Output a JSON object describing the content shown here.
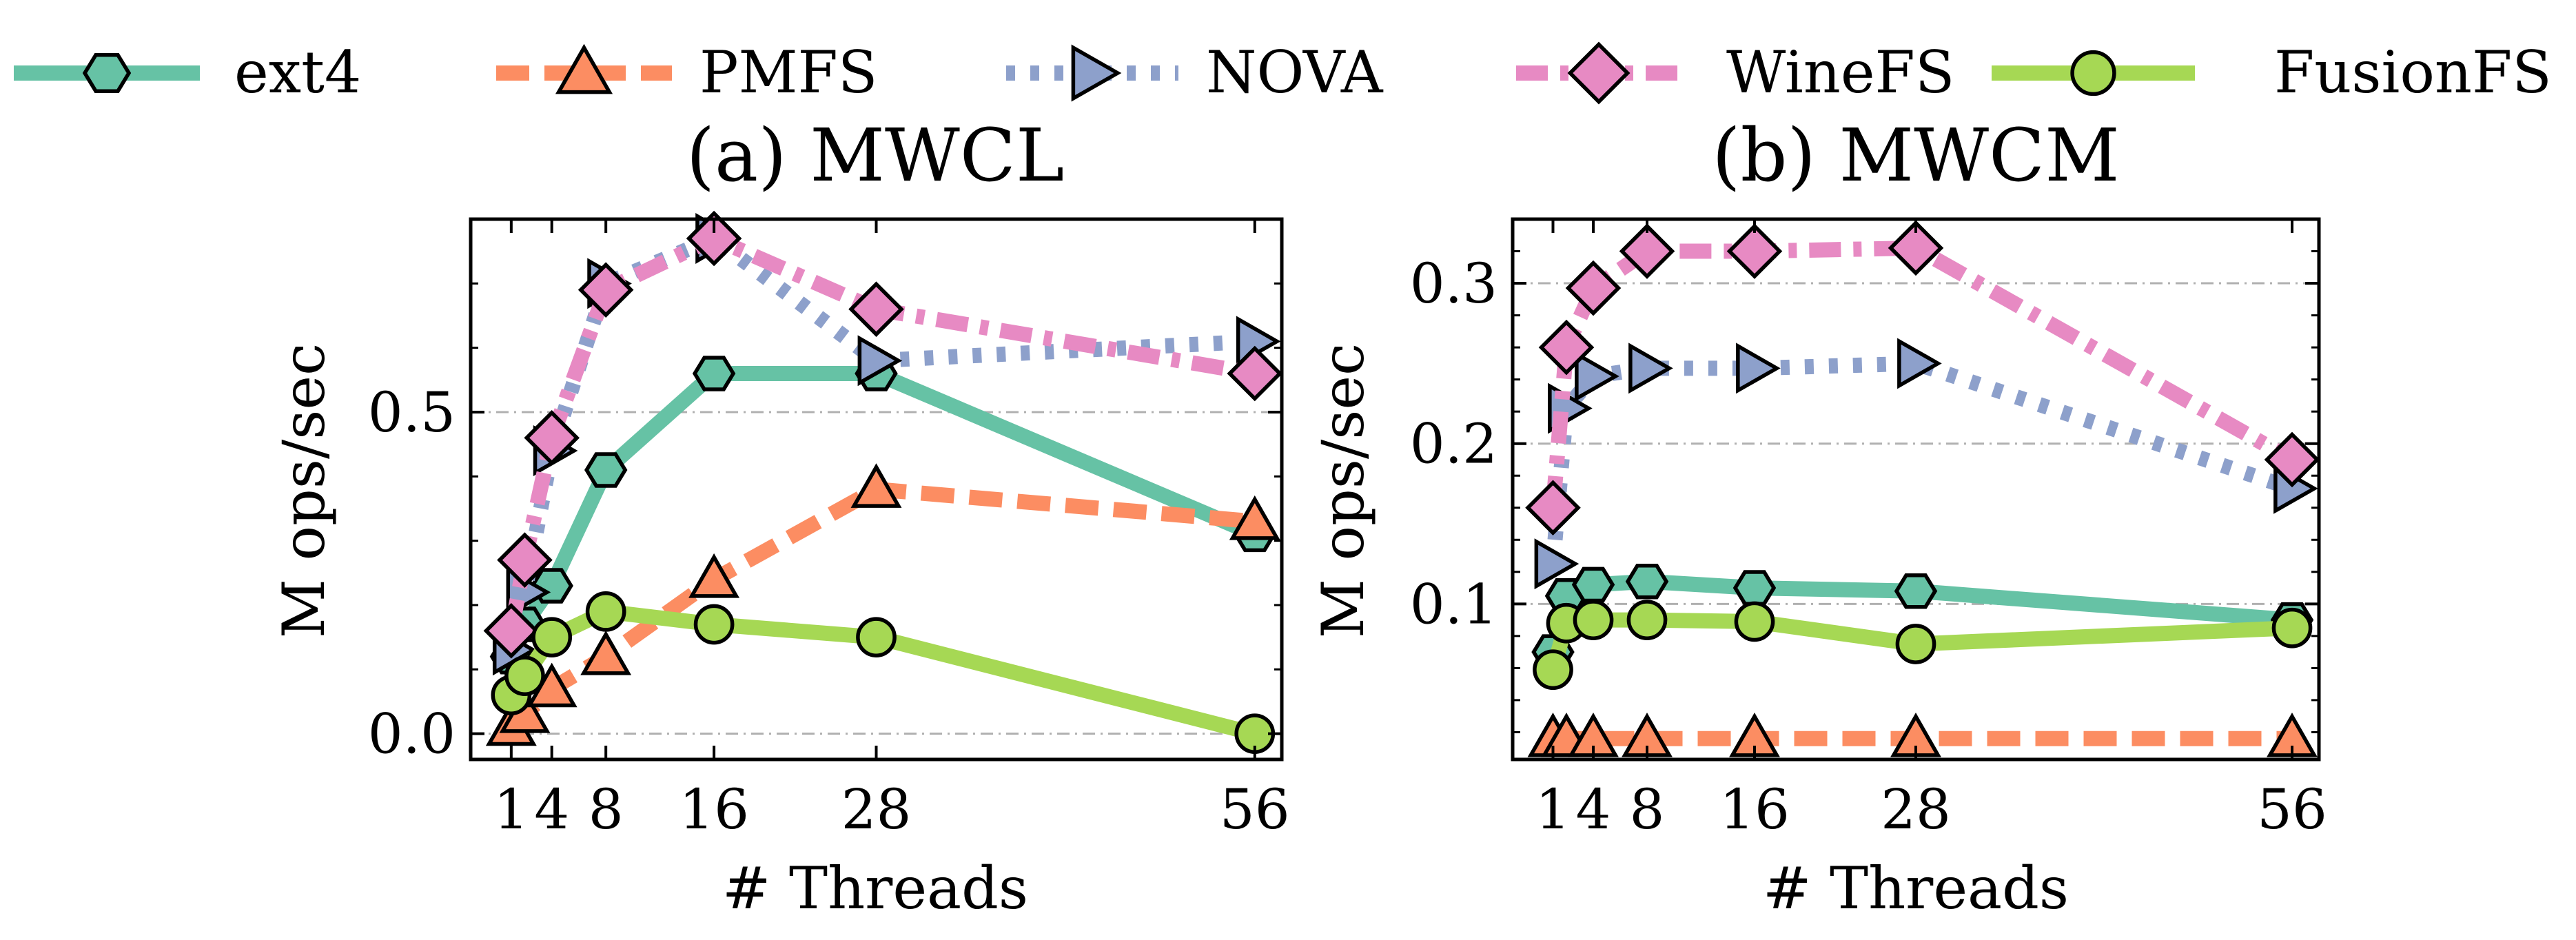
{
  "legend": [
    {
      "name": "ext4",
      "color": "#66c2a5",
      "marker": "hexagon",
      "dash": "solid"
    },
    {
      "name": "PMFS",
      "color": "#fc8d62",
      "marker": "triangle-up",
      "dash": "dashed"
    },
    {
      "name": "NOVA",
      "color": "#8da0cb",
      "marker": "triangle-right",
      "dash": "dotted"
    },
    {
      "name": "WineFS",
      "color": "#e78ac3",
      "marker": "diamond",
      "dash": "dashdot"
    },
    {
      "name": "FusionFS",
      "color": "#a6d854",
      "marker": "circle",
      "dash": "solid"
    }
  ],
  "chart_data": [
    {
      "type": "line",
      "title": "(a) MWCL",
      "xlabel": "# Threads",
      "ylabel": "M ops/sec",
      "x": [
        1,
        2,
        4,
        8,
        16,
        28,
        56
      ],
      "xticks": [
        1,
        4,
        8,
        16,
        28,
        56
      ],
      "xlim": [
        -2,
        58
      ],
      "ylim": [
        -0.04,
        0.8
      ],
      "yticks": [
        0.0,
        0.5
      ],
      "ytick_labels": [
        "0.0",
        "0.5"
      ],
      "grid": "horizontal dash-dot",
      "series": [
        {
          "name": "ext4",
          "values": [
            0.12,
            0.17,
            0.23,
            0.41,
            0.56,
            0.56,
            0.31
          ]
        },
        {
          "name": "PMFS",
          "values": [
            0.01,
            0.03,
            0.07,
            0.12,
            0.24,
            0.38,
            0.33
          ]
        },
        {
          "name": "NOVA",
          "values": [
            0.13,
            0.22,
            0.44,
            0.7,
            0.77,
            0.58,
            0.61
          ]
        },
        {
          "name": "WineFS",
          "values": [
            0.16,
            0.27,
            0.46,
            0.69,
            0.77,
            0.66,
            0.56
          ]
        },
        {
          "name": "FusionFS",
          "values": [
            0.06,
            0.09,
            0.15,
            0.19,
            0.17,
            0.15,
            0.0
          ]
        }
      ]
    },
    {
      "type": "line",
      "title": "(b) MWCM",
      "xlabel": "# Threads",
      "ylabel": "M ops/sec",
      "x": [
        1,
        2,
        4,
        8,
        16,
        28,
        56
      ],
      "xticks": [
        1,
        4,
        8,
        16,
        28,
        56
      ],
      "xlim": [
        -2,
        58
      ],
      "ylim": [
        0.003,
        0.34
      ],
      "yticks": [
        0.1,
        0.2,
        0.3
      ],
      "ytick_labels": [
        "0.1",
        "0.2",
        "0.3"
      ],
      "grid": "horizontal dash-dot",
      "series": [
        {
          "name": "ext4",
          "values": [
            0.07,
            0.105,
            0.112,
            0.114,
            0.11,
            0.108,
            0.09
          ]
        },
        {
          "name": "PMFS",
          "values": [
            0.016,
            0.016,
            0.016,
            0.016,
            0.016,
            0.016,
            0.016
          ]
        },
        {
          "name": "NOVA",
          "values": [
            0.125,
            0.222,
            0.242,
            0.247,
            0.247,
            0.25,
            0.172
          ]
        },
        {
          "name": "WineFS",
          "values": [
            0.16,
            0.26,
            0.297,
            0.32,
            0.32,
            0.322,
            0.19
          ]
        },
        {
          "name": "FusionFS",
          "values": [
            0.059,
            0.088,
            0.09,
            0.09,
            0.089,
            0.075,
            0.085
          ]
        }
      ]
    }
  ]
}
